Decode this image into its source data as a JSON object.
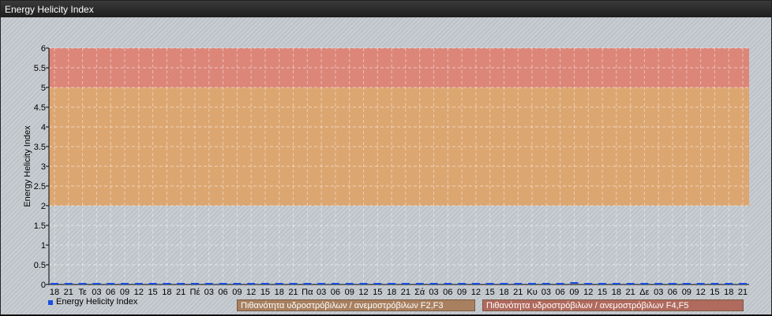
{
  "window": {
    "title": "Energy Helicity Index"
  },
  "chart_data": {
    "type": "line",
    "title": "",
    "ylabel": "Energy Helicity Index",
    "xlabel": "",
    "ylim": [
      0,
      6
    ],
    "yticks": [
      0,
      0.5,
      1,
      1.5,
      2,
      2.5,
      3,
      3.5,
      4,
      4.5,
      5,
      5.5,
      6
    ],
    "grid": true,
    "legend_placement": "bottom",
    "categories": [
      "18",
      "21",
      "Τε",
      "03",
      "06",
      "09",
      "12",
      "15",
      "18",
      "21",
      "Πέ",
      "03",
      "06",
      "09",
      "12",
      "15",
      "18",
      "21",
      "Πα",
      "03",
      "06",
      "09",
      "12",
      "15",
      "18",
      "21",
      "Σά",
      "03",
      "06",
      "09",
      "12",
      "15",
      "18",
      "21",
      "Κυ",
      "03",
      "06",
      "09",
      "12",
      "15",
      "18",
      "21",
      "Δε",
      "03",
      "06",
      "09",
      "12",
      "15",
      "18",
      "21"
    ],
    "series": [
      {
        "name": "Energy Helicity Index",
        "color": "#1a4fe0",
        "values": [
          0,
          0,
          0,
          0,
          0,
          0,
          0,
          0,
          0,
          0,
          0,
          0,
          0,
          0,
          0,
          0,
          0,
          0,
          0,
          0,
          0,
          0,
          0,
          0,
          0,
          0,
          0,
          0,
          0,
          0,
          0,
          0,
          0,
          0,
          0,
          0,
          0,
          0.02,
          0,
          0,
          0,
          0,
          0,
          0,
          0,
          0,
          0,
          0,
          0,
          0
        ]
      }
    ],
    "bands": [
      {
        "label": "Πιθανότητα υδροστρόβιλων / ανεμοστρόβιλων F2,F3",
        "from": 2,
        "to": 5,
        "color": "#e0a060"
      },
      {
        "label": "Πιθανότητα υδροστρόβιλων / ανεμοστρόβιλων F4,F5",
        "from": 5,
        "to": 6,
        "color": "#e07a6a"
      }
    ]
  }
}
